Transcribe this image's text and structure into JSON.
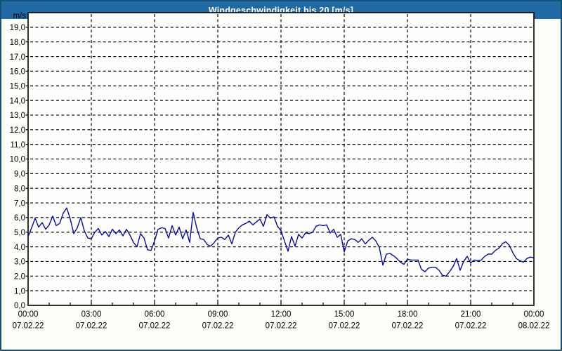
{
  "window": {
    "title": "Windgeschwindigkeit bis 20 [m/s]"
  },
  "colors": {
    "title_bar_bg": "#2069A2",
    "title_text": "#FFFFFF",
    "page_border": "#14527D",
    "page_bg": "#FDFFFA",
    "plot_bg": "#FEFFFC",
    "axis_and_grid": "#000000",
    "tick_text": "#000000",
    "series_line": "#0808A8"
  },
  "chart_data": {
    "type": "line",
    "title": "Windgeschwindigkeit bis 20 [m/s]",
    "unit_label": "m/s",
    "ylim": [
      0,
      20
    ],
    "ytick_step": 1,
    "ytick_labels": [
      "0,0",
      "1,0",
      "2,0",
      "3,0",
      "4,0",
      "5,0",
      "6,0",
      "7,0",
      "8,0",
      "9,0",
      "10,0",
      "11,0",
      "12,0",
      "13,0",
      "14,0",
      "15,0",
      "16,0",
      "17,0",
      "18,0",
      "19,0"
    ],
    "xlim_hours": [
      0,
      24
    ],
    "xtick_interval_hours": 3,
    "minor_xtick_interval_hours": 1,
    "grid_style": "dashed",
    "legend_position": "none",
    "xticks": [
      {
        "hour": 0,
        "time": "00:00",
        "date": "07.02.22"
      },
      {
        "hour": 3,
        "time": "03:00",
        "date": "07.02.22"
      },
      {
        "hour": 6,
        "time": "06:00",
        "date": "07.02.22"
      },
      {
        "hour": 9,
        "time": "09:00",
        "date": "07.02.22"
      },
      {
        "hour": 12,
        "time": "12:00",
        "date": "07.02.22"
      },
      {
        "hour": 15,
        "time": "15:00",
        "date": "07.02.22"
      },
      {
        "hour": 18,
        "time": "18:00",
        "date": "07.02.22"
      },
      {
        "hour": 21,
        "time": "21:00",
        "date": "07.02.22"
      },
      {
        "hour": 24,
        "time": "00:00",
        "date": "08.02.22"
      }
    ],
    "series": [
      {
        "name": "Windgeschwindigkeit",
        "color": "#0808A8",
        "start": "07.02.22 00:00",
        "sample_interval_minutes": 10,
        "values_mps": [
          4.7,
          5.3,
          5.95,
          5.35,
          5.65,
          5.2,
          5.5,
          6.1,
          5.45,
          5.6,
          6.3,
          6.65,
          5.9,
          4.9,
          5.3,
          6.0,
          5.1,
          4.6,
          4.55,
          5.0,
          5.25,
          4.8,
          5.05,
          4.7,
          5.2,
          4.9,
          5.15,
          4.75,
          5.2,
          4.8,
          4.3,
          4.0,
          4.9,
          4.6,
          3.8,
          3.75,
          4.4,
          5.2,
          5.3,
          5.25,
          4.6,
          5.45,
          4.8,
          5.35,
          4.55,
          5.15,
          4.3,
          6.35,
          5.3,
          4.55,
          4.5,
          4.15,
          4.05,
          4.3,
          4.6,
          4.65,
          4.5,
          4.8,
          4.2,
          5.0,
          5.3,
          5.5,
          5.6,
          5.75,
          5.5,
          5.7,
          5.9,
          5.4,
          6.2,
          5.95,
          6.05,
          5.4,
          5.1,
          4.4,
          3.7,
          4.7,
          4.05,
          4.85,
          4.6,
          4.95,
          4.9,
          5.0,
          5.4,
          5.5,
          5.45,
          5.5,
          4.95,
          5.2,
          4.65,
          4.85,
          3.65,
          4.4,
          4.55,
          4.5,
          4.3,
          4.55,
          4.2,
          4.45,
          4.65,
          4.4,
          3.95,
          2.75,
          3.5,
          3.55,
          3.4,
          3.2,
          2.95,
          2.8,
          3.15,
          3.1,
          3.1,
          3.1,
          2.45,
          2.3,
          2.55,
          2.6,
          2.6,
          2.4,
          2.05,
          2.0,
          2.3,
          2.65,
          3.2,
          2.4,
          3.0,
          3.35,
          2.9,
          3.1,
          3.05,
          3.1,
          3.35,
          3.5,
          3.5,
          3.75,
          3.9,
          4.2,
          4.35,
          4.1,
          3.6,
          3.2,
          3.05,
          2.95,
          3.2,
          3.3,
          3.25
        ]
      }
    ]
  }
}
